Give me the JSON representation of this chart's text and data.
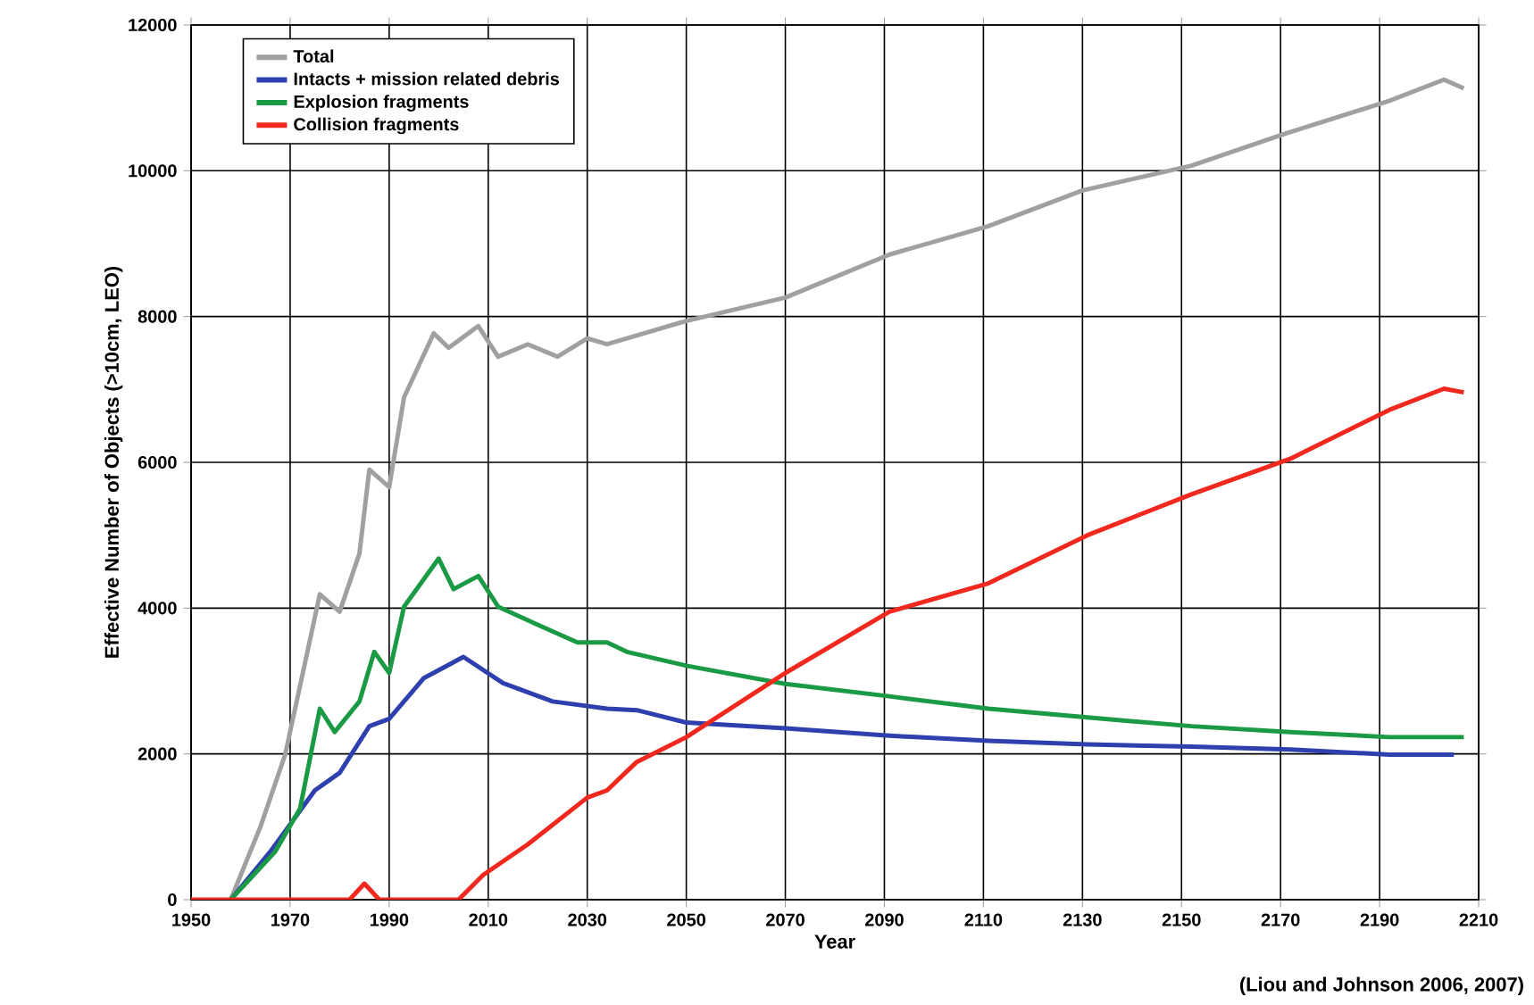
{
  "chart_data": {
    "type": "line",
    "xlabel": "Year",
    "ylabel": "Effective Number of Objects (>10cm, LEO)",
    "annotations": [
      "(Liou and Johnson 2006, 2007)"
    ],
    "xlim": [
      1950,
      2210
    ],
    "ylim": [
      0,
      12000
    ],
    "xticks": [
      1950,
      1970,
      1990,
      2010,
      2030,
      2050,
      2070,
      2090,
      2110,
      2130,
      2150,
      2170,
      2190,
      2210
    ],
    "yticks": [
      0,
      2000,
      4000,
      6000,
      8000,
      10000,
      12000
    ],
    "grid": true,
    "legend": "top left",
    "marker": "none",
    "line_style": "solid",
    "series": [
      {
        "name": "Total",
        "color": "#a0a0a0",
        "x": [
          1958,
          1964,
          1969,
          1976,
          1980,
          1984,
          1986,
          1990,
          1993,
          1999,
          2002,
          2008,
          2012,
          2018,
          2024,
          2030,
          2034,
          2038,
          2050,
          2070,
          2091,
          2111,
          2130,
          2152,
          2171,
          2192,
          2203,
          2207
        ],
        "values": [
          0,
          1000,
          1990,
          4190,
          3950,
          4750,
          5900,
          5660,
          6890,
          7770,
          7570,
          7870,
          7450,
          7620,
          7450,
          7700,
          7620,
          7700,
          7940,
          8260,
          8850,
          9240,
          9730,
          10070,
          10510,
          10960,
          11250,
          11130
        ]
      },
      {
        "name": "Intacts + mission related debris",
        "color": "#2e3fae",
        "x": [
          1958,
          1966,
          1975,
          1980,
          1986,
          1990,
          1997,
          2005,
          2013,
          2023,
          2034,
          2040,
          2050,
          2070,
          2091,
          2111,
          2131,
          2152,
          2172,
          2192,
          2205
        ],
        "values": [
          0,
          660,
          1500,
          1740,
          2380,
          2480,
          3040,
          3330,
          2970,
          2720,
          2620,
          2600,
          2430,
          2350,
          2250,
          2180,
          2130,
          2100,
          2060,
          1990,
          1990
        ]
      },
      {
        "name": "Explosion fragments",
        "color": "#1b9a45",
        "x": [
          1958,
          1967,
          1972,
          1976,
          1979,
          1984,
          1987,
          1990,
          1993,
          2000,
          2003,
          2008,
          2012,
          2020,
          2028,
          2034,
          2038,
          2050,
          2070,
          2091,
          2111,
          2131,
          2152,
          2172,
          2192,
          2207
        ],
        "values": [
          0,
          660,
          1250,
          2620,
          2300,
          2720,
          3400,
          3110,
          4020,
          4680,
          4260,
          4440,
          4020,
          3770,
          3530,
          3530,
          3400,
          3210,
          2960,
          2790,
          2620,
          2500,
          2380,
          2300,
          2230,
          2230
        ]
      },
      {
        "name": "Collision fragments",
        "color": "#f0281e",
        "x": [
          1950,
          1982,
          1985,
          1988,
          2004,
          2009,
          2018,
          2030,
          2034,
          2040,
          2050,
          2070,
          2091,
          2111,
          2131,
          2152,
          2172,
          2192,
          2203,
          2207
        ],
        "values": [
          0,
          0,
          220,
          0,
          0,
          340,
          760,
          1400,
          1500,
          1890,
          2230,
          3110,
          3950,
          4340,
          5000,
          5560,
          6050,
          6720,
          7010,
          6960
        ]
      }
    ]
  }
}
